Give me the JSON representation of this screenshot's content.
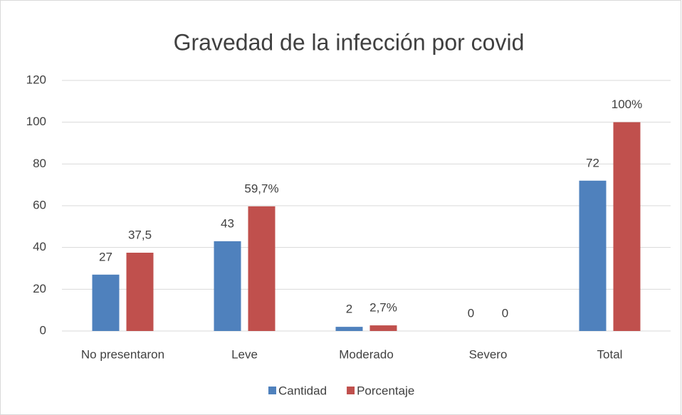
{
  "chart_data": {
    "type": "bar",
    "title": "Gravedad de la infección por covid",
    "categories": [
      "No presentaron",
      "Leve",
      "Moderado",
      "Severo",
      "Total"
    ],
    "series": [
      {
        "name": "Cantidad",
        "color": "#4f81bd",
        "values": [
          27,
          43,
          2,
          0,
          72
        ]
      },
      {
        "name": "Porcentaje",
        "color": "#c0504d",
        "values": [
          37.5,
          59.7,
          2.7,
          0,
          100
        ],
        "value_labels": [
          "37,5",
          "59,7%",
          "2,7%",
          "0",
          "100%"
        ]
      }
    ],
    "ylim": [
      0,
      120
    ],
    "yticks": [
      0,
      20,
      40,
      60,
      80,
      100,
      120
    ],
    "grid": true,
    "legend": "bottom"
  }
}
